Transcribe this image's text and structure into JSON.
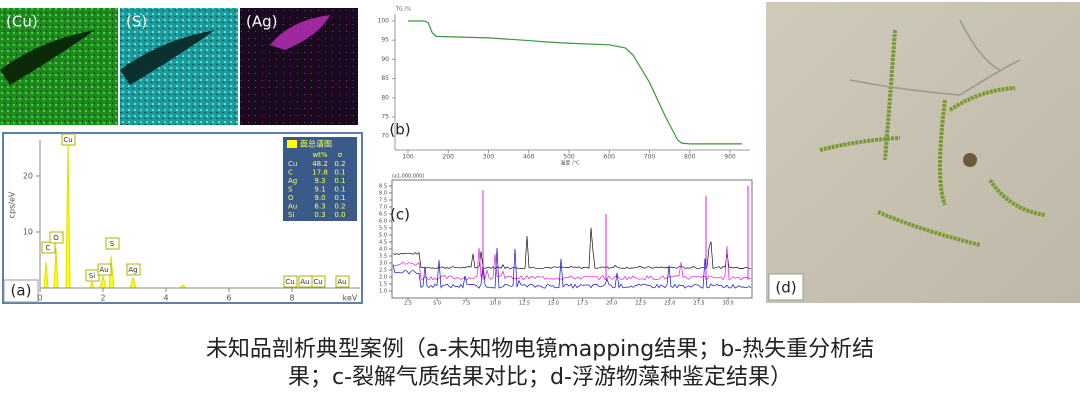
{
  "panel_a": {
    "label": "(a)",
    "maps": [
      "(Cu)",
      "(S)",
      "(Ag)"
    ],
    "spectrum": {
      "y_label": "cps/eV",
      "x_label": "keV",
      "xticks": [
        0,
        2,
        4,
        6,
        8
      ],
      "yticks": [
        10,
        20
      ],
      "peaks": [
        "C",
        "O",
        "Cu",
        "Si",
        "Au",
        "S",
        "Ag",
        "Cu",
        "Au",
        "Cu",
        "Au"
      ],
      "table": {
        "title": "面总谱图",
        "columns": [
          "wt%",
          "σ"
        ],
        "rows": [
          [
            "Cu",
            "48.2",
            "0.2"
          ],
          [
            "C",
            "17.8",
            "0.1"
          ],
          [
            "Ag",
            "9.3",
            "0.1"
          ],
          [
            "S",
            "9.1",
            "0.1"
          ],
          [
            "O",
            "9.0",
            "0.1"
          ],
          [
            "Au",
            "6.3",
            "0.2"
          ],
          [
            "Si",
            "0.3",
            "0.0"
          ]
        ]
      }
    }
  },
  "panel_b": {
    "label": "(b)",
    "y_label": "TG /%",
    "x_label": "温度 /°C",
    "yticks": [
      100,
      95,
      90,
      85,
      80,
      75,
      70
    ],
    "xticks": [
      100,
      200,
      300,
      400,
      500,
      600,
      700,
      800,
      900
    ],
    "curve": {
      "x": [
        100,
        140,
        150,
        160,
        170,
        200,
        300,
        400,
        450,
        500,
        600,
        640,
        660,
        700,
        740,
        770,
        780,
        800,
        930
      ],
      "y": [
        100,
        100,
        99.6,
        97,
        96,
        95.9,
        95.6,
        94.9,
        94.5,
        94.2,
        93.8,
        93,
        91,
        84,
        75,
        69,
        68.2,
        68,
        68
      ]
    }
  },
  "panel_c": {
    "label": "(c)",
    "y_label": "(x1,000,000)",
    "yticks": [
      {
        "value": 1,
        "label": "1.0"
      },
      1.5,
      {
        "value": 2,
        "label": "2.0"
      },
      2.5,
      {
        "value": 3,
        "label": "3.0"
      },
      3.5,
      {
        "value": 4,
        "label": "4.0"
      },
      4.5,
      {
        "value": 5,
        "label": "5.0"
      },
      5.5,
      {
        "value": 6,
        "label": "6.0"
      },
      6.5,
      {
        "value": 7,
        "label": "7.0"
      },
      7.5,
      {
        "value": 8,
        "label": "8.0"
      },
      8.5
    ],
    "xticks": [
      2.5,
      {
        "value": 5,
        "label": "5.0"
      },
      7.5,
      {
        "value": 10,
        "label": "10.0"
      },
      12.5,
      {
        "value": 15,
        "label": "15.0"
      },
      17.5,
      {
        "value": 20,
        "label": "20.0"
      },
      22.5,
      {
        "value": 25,
        "label": "25.0"
      },
      27.5,
      {
        "value": 30,
        "label": "30.0"
      }
    ]
  },
  "panel_d": {
    "label": "(d)"
  },
  "caption": [
    "未知品剖析典型案例（a-未知物电镜mapping结果；b-热失重分析结",
    "果；c-裂解气质结果对比；d-浮游物藻种鉴定结果）"
  ]
}
